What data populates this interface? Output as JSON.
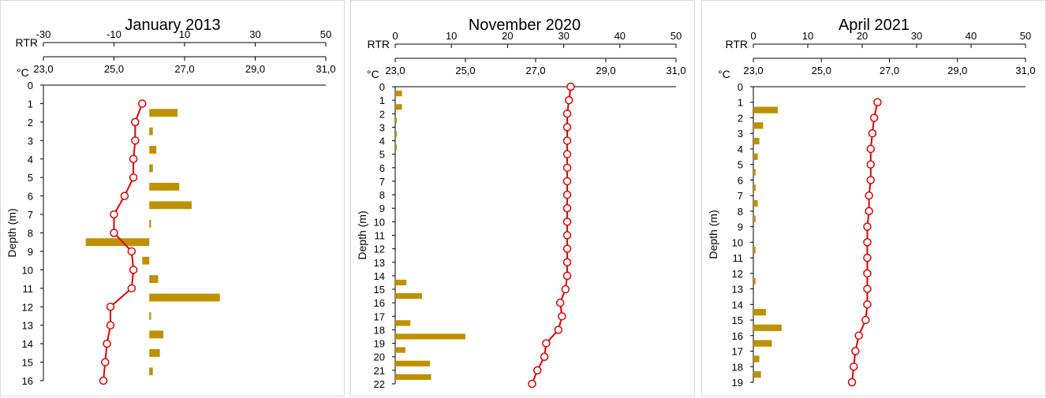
{
  "chart_data": [
    {
      "type": "line+bar",
      "title": "January 2013",
      "ylabel": "Depth (m)",
      "temp_axis": {
        "label": "°C",
        "ticks": [
          "23,0",
          "25,0",
          "27,0",
          "29,0",
          "31,0"
        ],
        "range": [
          23,
          31
        ]
      },
      "rtr_axis": {
        "label": "RTR",
        "ticks": [
          "-30",
          "-10",
          "10",
          "30",
          "50"
        ],
        "range": [
          -30,
          50
        ]
      },
      "depth_ticks": [
        "0",
        "1",
        "2",
        "3",
        "4",
        "5",
        "6",
        "7",
        "8",
        "9",
        "10",
        "11",
        "12",
        "13",
        "14",
        "15",
        "16"
      ],
      "depth_range": [
        0,
        16
      ],
      "temperature": {
        "color": "#e00000",
        "depth": [
          1,
          2,
          3,
          4,
          5,
          6,
          7,
          8,
          9,
          10,
          11,
          12,
          13,
          14,
          15,
          16
        ],
        "values": [
          25.8,
          25.6,
          25.6,
          25.55,
          25.55,
          25.3,
          25.0,
          25.0,
          25.5,
          25.55,
          25.5,
          24.9,
          24.9,
          24.8,
          24.75,
          24.7
        ]
      },
      "rtr": {
        "color": "#bf9000",
        "depth": [
          1.5,
          2.5,
          3.5,
          4.5,
          5.5,
          6.5,
          7.5,
          8.5,
          9.5,
          10.5,
          11.5,
          12.5,
          13.5,
          14.5,
          15.5
        ],
        "values": [
          8,
          1,
          2,
          1,
          8.5,
          12,
          0.5,
          -18,
          -2,
          2.5,
          20,
          0.5,
          4,
          3,
          1
        ]
      }
    },
    {
      "type": "line+bar",
      "title": "November 2020",
      "ylabel": "Depth (m)",
      "temp_axis": {
        "label": "°C",
        "ticks": [
          "23,0",
          "25,0",
          "27,0",
          "29,0",
          "31,0"
        ],
        "range": [
          23,
          31
        ]
      },
      "rtr_axis": {
        "label": "RTR",
        "ticks": [
          "0",
          "10",
          "20",
          "30",
          "40",
          "50"
        ],
        "range": [
          0,
          50
        ]
      },
      "depth_ticks": [
        "0",
        "1",
        "2",
        "3",
        "4",
        "5",
        "6",
        "7",
        "8",
        "9",
        "10",
        "11",
        "12",
        "13",
        "14",
        "15",
        "16",
        "17",
        "18",
        "19",
        "20",
        "21",
        "22"
      ],
      "depth_range": [
        0,
        22
      ],
      "temperature": {
        "color": "#e00000",
        "depth": [
          0,
          1,
          2,
          3,
          4,
          5,
          6,
          7,
          8,
          9,
          10,
          11,
          12,
          13,
          14,
          15,
          16,
          17,
          18,
          19,
          20,
          21,
          22
        ],
        "values": [
          28.0,
          27.95,
          27.9,
          27.9,
          27.9,
          27.9,
          27.9,
          27.9,
          27.9,
          27.9,
          27.9,
          27.9,
          27.9,
          27.9,
          27.9,
          27.85,
          27.7,
          27.75,
          27.65,
          27.3,
          27.25,
          27.05,
          26.9
        ]
      },
      "rtr": {
        "color": "#bf9000",
        "depth": [
          0.5,
          1.5,
          2.5,
          3.5,
          4.5,
          14.5,
          15.5,
          17.5,
          18.5,
          19.5,
          20.5,
          21.5
        ],
        "values": [
          1.2,
          1.2,
          0.3,
          0.3,
          0.3,
          2,
          4.8,
          2.7,
          12.5,
          1.8,
          6.2,
          6.4
        ]
      }
    },
    {
      "type": "line+bar",
      "title": "April 2021",
      "ylabel": "Depth (m)",
      "temp_axis": {
        "label": "°C",
        "ticks": [
          "23,0",
          "25,0",
          "27,0",
          "29,0",
          "31,0"
        ],
        "range": [
          23,
          31
        ]
      },
      "rtr_axis": {
        "label": "RTR",
        "ticks": [
          "0",
          "10",
          "20",
          "30",
          "40",
          "50"
        ],
        "range": [
          0,
          50
        ]
      },
      "depth_ticks": [
        "0",
        "1",
        "2",
        "3",
        "4",
        "5",
        "6",
        "7",
        "8",
        "9",
        "10",
        "11",
        "12",
        "13",
        "14",
        "15",
        "16",
        "17",
        "18",
        "19"
      ],
      "depth_range": [
        0,
        19
      ],
      "temperature": {
        "color": "#e00000",
        "depth": [
          1,
          2,
          3,
          4,
          5,
          6,
          7,
          8,
          9,
          10,
          11,
          12,
          13,
          14,
          15,
          16,
          17,
          18,
          19
        ],
        "values": [
          26.65,
          26.55,
          26.5,
          26.45,
          26.45,
          26.45,
          26.4,
          26.4,
          26.35,
          26.35,
          26.35,
          26.35,
          26.35,
          26.35,
          26.3,
          26.1,
          26.0,
          25.95,
          25.9
        ]
      },
      "rtr": {
        "color": "#bf9000",
        "depth": [
          1.5,
          2.5,
          3.5,
          4.5,
          5.5,
          6.5,
          7.5,
          8.5,
          10.5,
          12.5,
          14.5,
          15.5,
          16.5,
          17.5,
          18.5
        ],
        "values": [
          4.5,
          1.8,
          1.1,
          0.8,
          0.4,
          0.4,
          0.8,
          0.4,
          0.4,
          0.4,
          2.3,
          5.2,
          3.4,
          1.1,
          1.4
        ]
      }
    }
  ]
}
